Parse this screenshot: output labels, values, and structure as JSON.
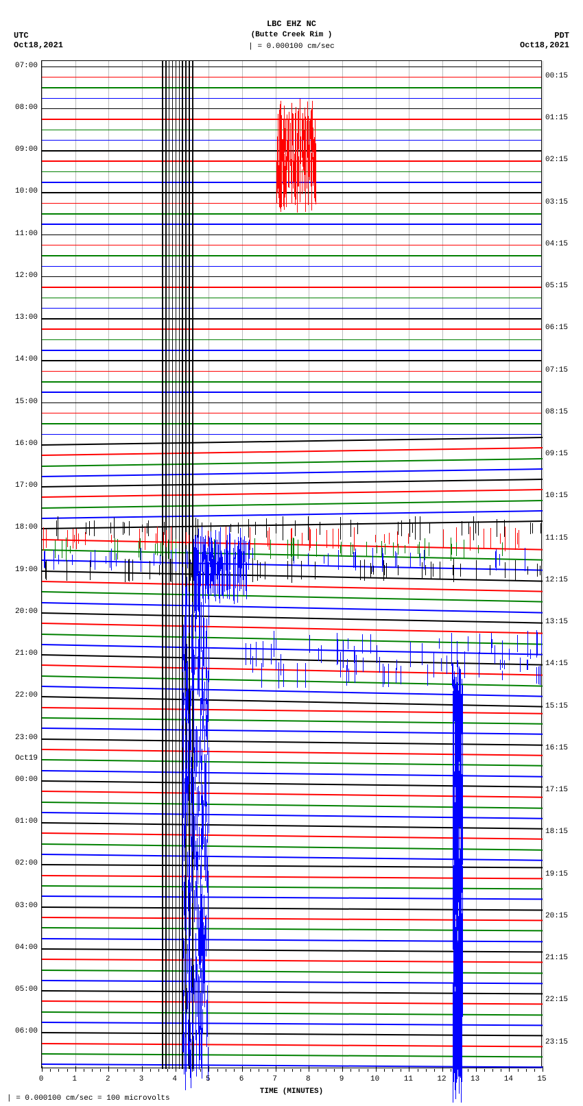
{
  "header": {
    "station": "LBC EHZ NC",
    "location": "(Butte Creek Rim )",
    "scale_legend": "| = 0.000100 cm/sec"
  },
  "timezone_left": {
    "tz": "UTC",
    "date": "Oct18,2021"
  },
  "timezone_right": {
    "tz": "PDT",
    "date": "Oct18,2021"
  },
  "plot": {
    "background_color": "#ffffff",
    "grid_color": "#bbbbbb",
    "border_color": "#000000",
    "x_title": "TIME (MINUTES)",
    "x_ticks": [
      0,
      1,
      2,
      3,
      4,
      5,
      6,
      7,
      8,
      9,
      10,
      11,
      12,
      13,
      14,
      15
    ],
    "colors": {
      "black": "#000000",
      "red": "#ff0000",
      "green": "#008000",
      "blue": "#0000ff"
    },
    "trace_color_cycle": [
      "black",
      "red",
      "green",
      "blue"
    ],
    "y_left_labels": [
      "07:00",
      "08:00",
      "09:00",
      "10:00",
      "11:00",
      "12:00",
      "13:00",
      "14:00",
      "15:00",
      "16:00",
      "17:00",
      "18:00",
      "19:00",
      "20:00",
      "21:00",
      "22:00",
      "23:00",
      "Oct19",
      "00:00",
      "01:00",
      "02:00",
      "03:00",
      "04:00",
      "05:00",
      "06:00"
    ],
    "y_right_labels": [
      "00:15",
      "01:15",
      "02:15",
      "03:15",
      "04:15",
      "05:15",
      "06:15",
      "07:15",
      "08:15",
      "09:15",
      "10:15",
      "11:15",
      "12:15",
      "13:15",
      "14:15",
      "15:15",
      "16:15",
      "17:15",
      "18:15",
      "19:15",
      "20:15",
      "21:15",
      "22:15",
      "23:15"
    ],
    "n_traces": 96,
    "vertical_event_bands": [
      {
        "x_min": 3.6,
        "x_max": 4.5,
        "color": "#000000",
        "opacity": 0.95
      }
    ],
    "trace_slopes": {
      "default": 0,
      "ranges": [
        {
          "from": 36,
          "to": 44,
          "slope": -0.015
        },
        {
          "from": 45,
          "to": 60,
          "slope": 0.02
        },
        {
          "from": 61,
          "to": 75,
          "slope": 0.012
        },
        {
          "from": 76,
          "to": 96,
          "slope": 0.006
        }
      ]
    },
    "spike_regions": [
      {
        "trace_from": 6,
        "trace_to": 11,
        "x_from": 7.0,
        "x_to": 8.2,
        "amplitude": 45,
        "color": "#ff0000",
        "density": 25
      },
      {
        "trace_from": 44,
        "trace_to": 48,
        "x_from": 0,
        "x_to": 15,
        "amplitude": 18,
        "color": "mixed",
        "density": 50
      },
      {
        "trace_from": 46,
        "trace_to": 49,
        "x_from": 4.5,
        "x_to": 6.2,
        "amplitude": 35,
        "color": "#0000ff",
        "density": 30
      },
      {
        "trace_from": 55,
        "trace_to": 58,
        "x_from": 6.0,
        "x_to": 15.0,
        "amplitude": 20,
        "color": "#0000ff",
        "density": 20
      },
      {
        "trace_from": 60,
        "trace_to": 95,
        "x_from": 12.3,
        "x_to": 12.6,
        "amplitude": 60,
        "color": "#0000ff",
        "density": 8
      },
      {
        "trace_from": 50,
        "trace_to": 95,
        "x_from": 4.2,
        "x_to": 5.0,
        "amplitude": 40,
        "color": "#0000ff",
        "density": 6
      }
    ]
  },
  "footer": {
    "text": "| = 0.000100 cm/sec =    100 microvolts"
  }
}
